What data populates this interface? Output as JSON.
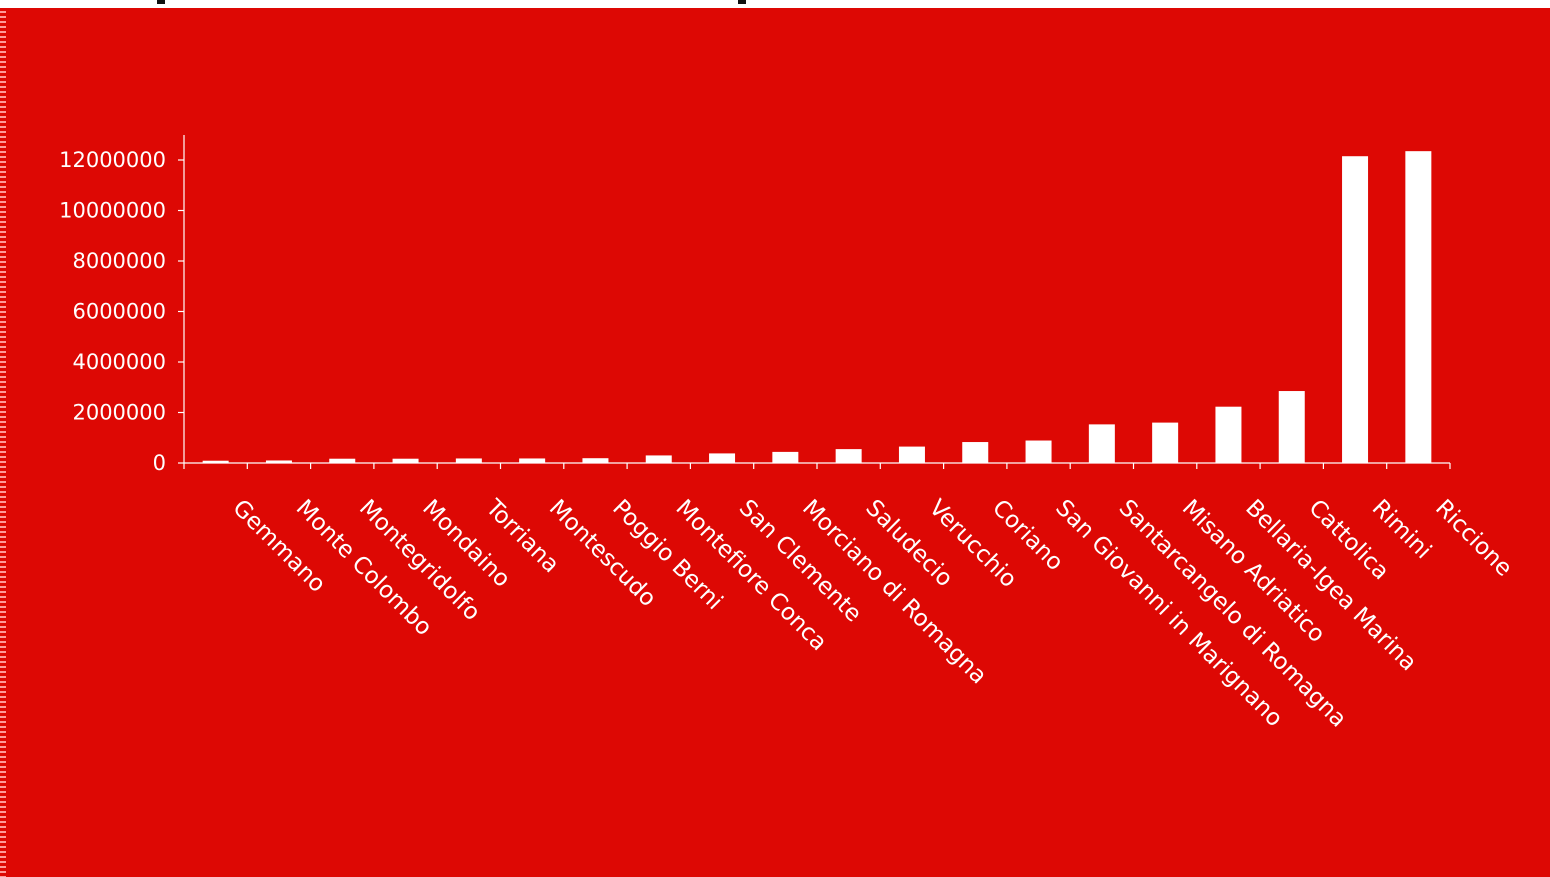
{
  "colors": {
    "background": "#dd0804",
    "bars": "#ffffff",
    "axis": "#ffffff",
    "text": "#ffffff"
  },
  "chart_data": {
    "type": "bar",
    "title": "",
    "xlabel": "",
    "ylabel": "",
    "ylim": [
      0,
      13000000
    ],
    "yticks": [
      0,
      2000000,
      4000000,
      6000000,
      8000000,
      10000000,
      12000000
    ],
    "grid": false,
    "legend": "none",
    "categories": [
      "Gemmano",
      "Monte Colombo",
      "Montegridolfo",
      "Mondaino",
      "Torriana",
      "Montescudo",
      "Poggio Berni",
      "Montefiore Conca",
      "San Clemente",
      "Morciano di Romagna",
      "Saludecio",
      "Verucchio",
      "Coriano",
      "San Giovanni in Marignano",
      "Santarcangelo di Romagna",
      "Misano Adriatico",
      "Bellaria-Igea Marina",
      "Cattolica",
      "Rimini",
      "Riccione"
    ],
    "values": [
      90000,
      100000,
      170000,
      170000,
      180000,
      180000,
      190000,
      300000,
      380000,
      440000,
      550000,
      650000,
      830000,
      890000,
      1530000,
      1600000,
      2230000,
      2850000,
      12150000,
      12350000
    ]
  }
}
